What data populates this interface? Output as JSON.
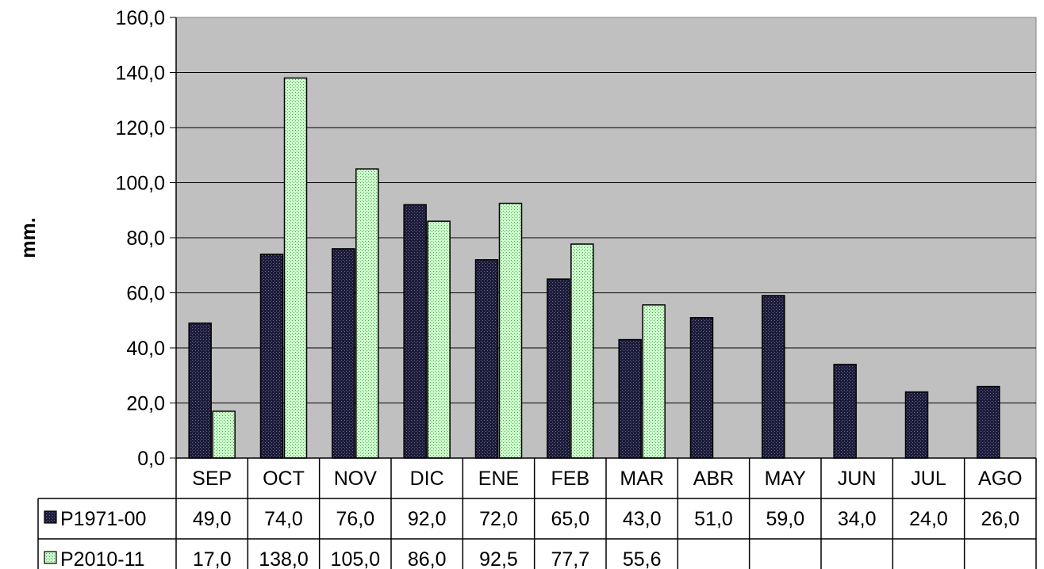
{
  "chart_data": {
    "type": "bar",
    "title": "",
    "xlabel": "",
    "ylabel": "mm.",
    "ylim": [
      0,
      160
    ],
    "yticks": [
      "0,0",
      "20,0",
      "40,0",
      "60,0",
      "80,0",
      "100,0",
      "120,0",
      "140,0",
      "160,0"
    ],
    "grid": true,
    "legend": "data-table",
    "plot_background": "#c0c0c0",
    "categories": [
      "SEP",
      "OCT",
      "NOV",
      "DIC",
      "ENE",
      "FEB",
      "MAR",
      "ABR",
      "MAY",
      "JUN",
      "JUL",
      "AGO"
    ],
    "series": [
      {
        "name": "P1971-00",
        "color": "#1c1c3a",
        "values": [
          49.0,
          74.0,
          76.0,
          92.0,
          72.0,
          65.0,
          43.0,
          51.0,
          59.0,
          34.0,
          24.0,
          26.0
        ],
        "labels": [
          "49,0",
          "74,0",
          "76,0",
          "92,0",
          "72,0",
          "65,0",
          "43,0",
          "51,0",
          "59,0",
          "34,0",
          "24,0",
          "26,0"
        ]
      },
      {
        "name": "P2010-11",
        "color": "#ccffcc",
        "values": [
          17.0,
          138.0,
          105.0,
          86.0,
          92.5,
          77.7,
          55.6,
          null,
          null,
          null,
          null,
          null
        ],
        "labels": [
          "17,0",
          "138,0",
          "105,0",
          "86,0",
          "92,5",
          "77,7",
          "55,6",
          "",
          "",
          "",
          "",
          ""
        ]
      }
    ]
  }
}
